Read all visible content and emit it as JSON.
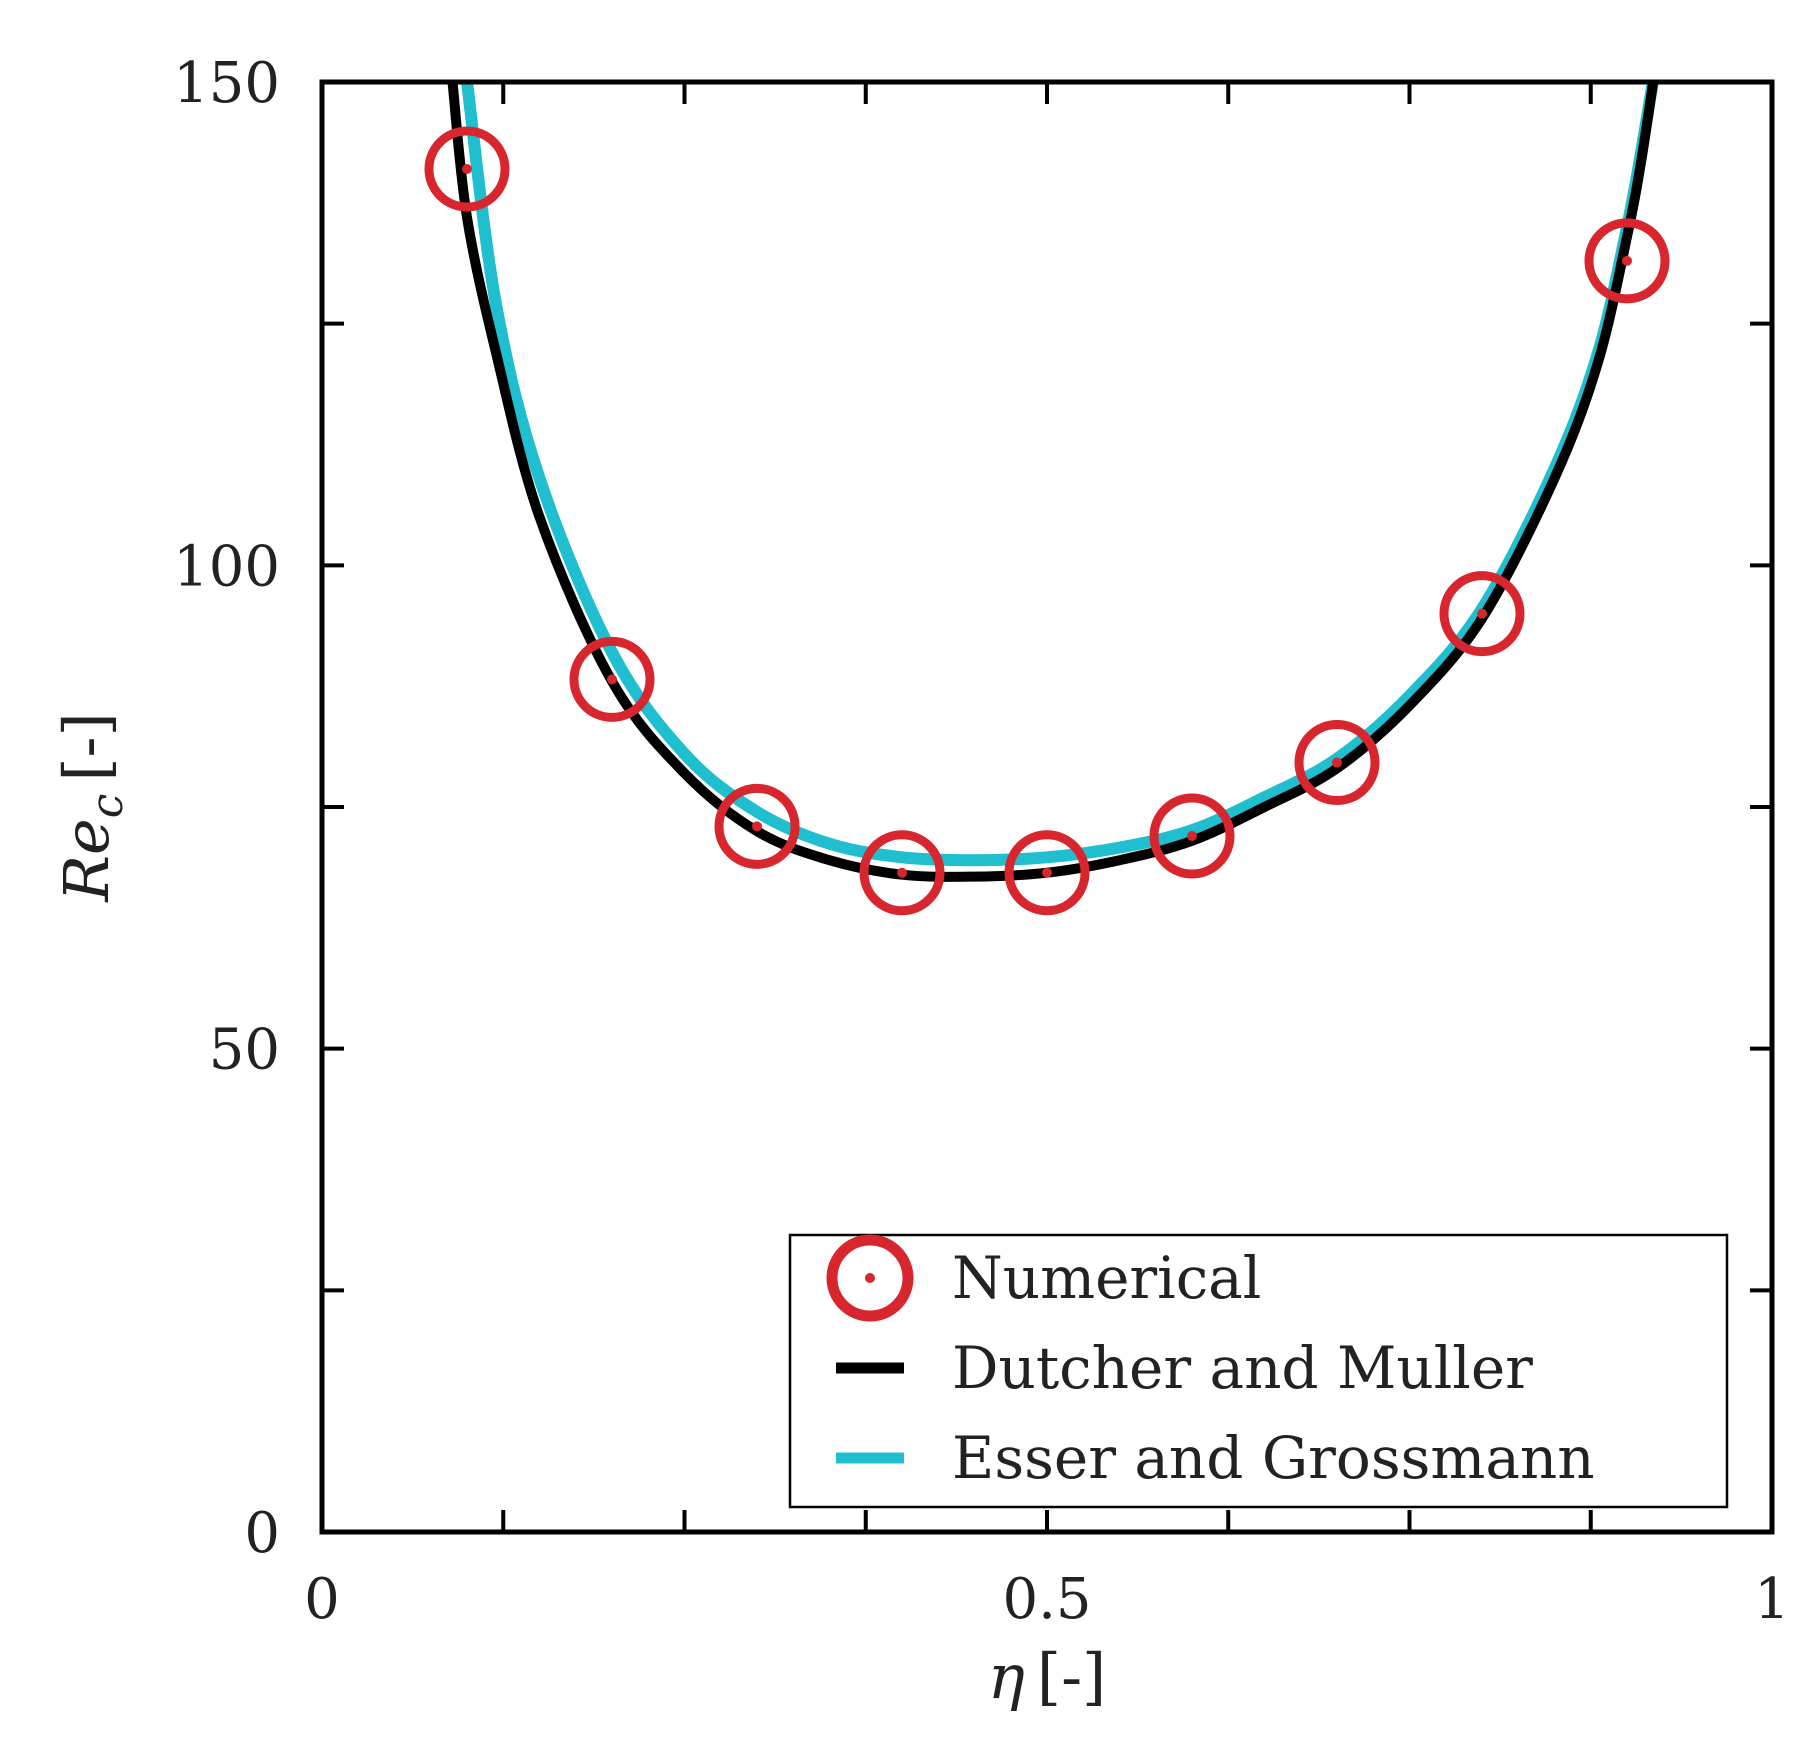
{
  "chart_data": {
    "type": "scatter",
    "title": "",
    "xlabel": {
      "symbol": "η",
      "unit": "[-]"
    },
    "ylabel": {
      "symbol": "Re",
      "subscript": "c",
      "unit": "[-]"
    },
    "xlim": [
      0,
      1
    ],
    "ylim": [
      0,
      150
    ],
    "xticks": [
      0,
      0.125,
      0.25,
      0.375,
      0.5,
      0.625,
      0.75,
      0.875,
      1
    ],
    "xtick_labels": [
      {
        "value": 0,
        "label": "0"
      },
      {
        "value": 0.5,
        "label": "0.5"
      },
      {
        "value": 1,
        "label": "1"
      }
    ],
    "yticks": [
      0,
      25,
      50,
      75,
      100,
      125,
      150
    ],
    "ytick_labels": [
      {
        "value": 0,
        "label": "0"
      },
      {
        "value": 50,
        "label": "50"
      },
      {
        "value": 100,
        "label": "100"
      },
      {
        "value": 150,
        "label": "150"
      }
    ],
    "grid": false,
    "legend_position": "bottom-right",
    "series": [
      {
        "name": "Numerical",
        "kind": "markers",
        "color": "#d7262e",
        "x": [
          0.1,
          0.2,
          0.3,
          0.4,
          0.5,
          0.6,
          0.7,
          0.8,
          0.9
        ],
        "y": [
          141,
          88.2,
          73,
          68.2,
          68.2,
          72,
          79.6,
          95,
          131.5
        ]
      },
      {
        "name": "Dutcher and Muller",
        "kind": "line",
        "color": "#000000",
        "x": [
          0.09,
          0.1,
          0.12,
          0.15,
          0.2,
          0.25,
          0.3,
          0.35,
          0.4,
          0.45,
          0.5,
          0.55,
          0.6,
          0.65,
          0.7,
          0.75,
          0.8,
          0.85,
          0.88,
          0.9,
          0.91,
          0.92
        ],
        "y": [
          150,
          136,
          122,
          105,
          88,
          78.5,
          72.5,
          69.5,
          68,
          67.8,
          68.2,
          69.5,
          71.5,
          75,
          79,
          85.5,
          94.5,
          109,
          121,
          134,
          142,
          152
        ]
      },
      {
        "name": "Esser and Grossmann",
        "kind": "line",
        "color": "#1fbfd0",
        "x": [
          0.1,
          0.12,
          0.15,
          0.2,
          0.25,
          0.3,
          0.35,
          0.4,
          0.45,
          0.5,
          0.55,
          0.6,
          0.65,
          0.7,
          0.75,
          0.8,
          0.85,
          0.88,
          0.9,
          0.91,
          0.92
        ],
        "y": [
          150,
          127,
          109,
          91,
          80.5,
          74.5,
          71.2,
          69.8,
          69.5,
          69.8,
          70.8,
          72.6,
          76,
          80,
          86.5,
          95.5,
          110,
          122,
          135,
          143,
          152
        ]
      }
    ]
  }
}
